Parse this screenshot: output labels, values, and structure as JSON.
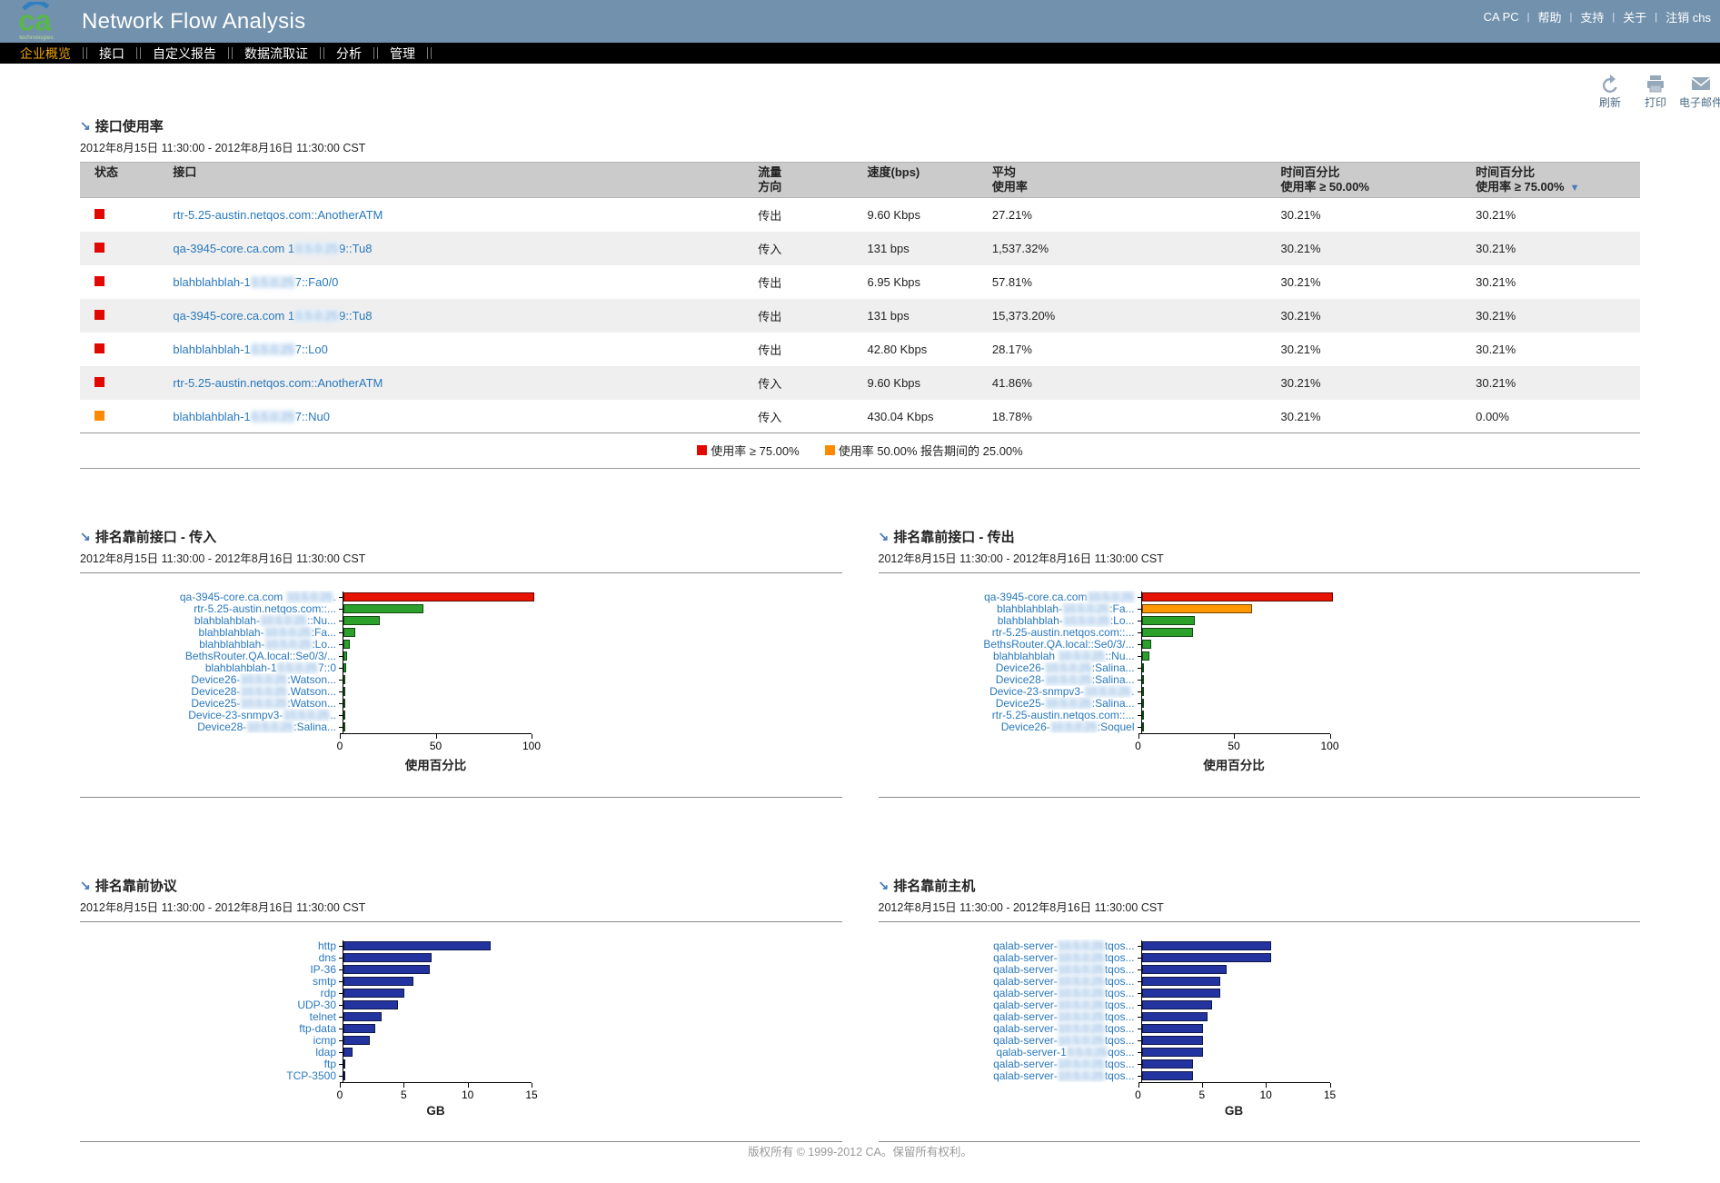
{
  "colors": {
    "header_bg": "#7191ad",
    "nav_bg": "#000000",
    "nav_active": "#f0a500",
    "link": "#2878be",
    "status_red": "#e00800",
    "status_orange": "#ff8a00"
  },
  "header": {
    "brand": "Network Flow Analysis",
    "logo_text": "ca",
    "logo_sub": "technologies",
    "links": [
      {
        "label": "CA PC"
      },
      {
        "label": "帮助"
      },
      {
        "label": "支持"
      },
      {
        "label": "关于"
      },
      {
        "label": "注销 chs"
      }
    ]
  },
  "nav": {
    "items": [
      {
        "label": "企业概览",
        "active": true
      },
      {
        "label": "接口",
        "active": false
      },
      {
        "label": "自定义报告",
        "active": false
      },
      {
        "label": "数据流取证",
        "active": false
      },
      {
        "label": "分析",
        "active": false
      },
      {
        "label": "管理",
        "active": false
      }
    ]
  },
  "toolbar": {
    "refresh": "刷新",
    "print": "打印",
    "email": "电子邮件"
  },
  "interface_table": {
    "title": "接口使用率",
    "date_range": "2012年8月15日 11:30:00 - 2012年8月16日 11:30:00 CST",
    "columns": {
      "status": "状态",
      "interface": "接口",
      "direction": [
        "流量",
        "方向"
      ],
      "speed": "速度(bps)",
      "avg": [
        "平均",
        "使用率"
      ],
      "p50": [
        "时间百分比",
        "使用率 ≥ 50.00%"
      ],
      "p75": [
        "时间百分比",
        "使用率 ≥ 75.00%"
      ]
    },
    "sort_column": "p75",
    "rows": [
      {
        "status": "red",
        "name": [
          {
            "t": "rtr-5.25-austin.netqos.com::AnotherATM"
          }
        ],
        "direction": "传出",
        "speed": "9.60 Kbps",
        "avg": "27.21%",
        "p50": "30.21%",
        "p75": "30.21%"
      },
      {
        "status": "red",
        "name": [
          {
            "t": "qa-3945-core.ca.com 1"
          },
          {
            "t": "0.5.0.25",
            "blur": true
          },
          {
            "t": "9::Tu8"
          }
        ],
        "direction": "传入",
        "speed": "131 bps",
        "avg": "1,537.32%",
        "p50": "30.21%",
        "p75": "30.21%"
      },
      {
        "status": "red",
        "name": [
          {
            "t": "blahblahblah-1"
          },
          {
            "t": "0.5.0.25",
            "blur": true
          },
          {
            "t": "7::Fa0/0"
          }
        ],
        "direction": "传出",
        "speed": "6.95 Kbps",
        "avg": "57.81%",
        "p50": "30.21%",
        "p75": "30.21%"
      },
      {
        "status": "red",
        "name": [
          {
            "t": "qa-3945-core.ca.com 1"
          },
          {
            "t": "0.5.0.25",
            "blur": true
          },
          {
            "t": "9::Tu8"
          }
        ],
        "direction": "传出",
        "speed": "131 bps",
        "avg": "15,373.20%",
        "p50": "30.21%",
        "p75": "30.21%"
      },
      {
        "status": "red",
        "name": [
          {
            "t": "blahblahblah-1"
          },
          {
            "t": "0.5.0.25",
            "blur": true
          },
          {
            "t": "7::Lo0"
          }
        ],
        "direction": "传出",
        "speed": "42.80 Kbps",
        "avg": "28.17%",
        "p50": "30.21%",
        "p75": "30.21%"
      },
      {
        "status": "red",
        "name": [
          {
            "t": "rtr-5.25-austin.netqos.com::AnotherATM"
          }
        ],
        "direction": "传入",
        "speed": "9.60 Kbps",
        "avg": "41.86%",
        "p50": "30.21%",
        "p75": "30.21%"
      },
      {
        "status": "orange",
        "name": [
          {
            "t": "blahblahblah-1"
          },
          {
            "t": "0.5.0.25",
            "blur": true
          },
          {
            "t": "7::Nu0"
          }
        ],
        "direction": "传入",
        "speed": "430.04 Kbps",
        "avg": "18.78%",
        "p50": "30.21%",
        "p75": "0.00%"
      }
    ],
    "legend": [
      {
        "color": "#e00800",
        "text": "使用率 ≥ 75.00%"
      },
      {
        "color": "#ff8a00",
        "text": "使用率 50.00% 报告期间的 25.00%"
      }
    ]
  },
  "chart_data": [
    {
      "type": "bar",
      "orientation": "horizontal",
      "title": "排名靠前接口 - 传入",
      "date_range": "2012年8月15日 11:30:00 - 2012年8月16日 11:30:00 CST",
      "xlabel": "使用百分比",
      "xlim": [
        0,
        100
      ],
      "xticks": [
        0,
        50,
        100
      ],
      "categories": [
        [
          {
            "t": "qa-3945-core.ca.com "
          },
          {
            "t": "10.5.0.25",
            "blur": true
          },
          {
            "t": "."
          }
        ],
        [
          {
            "t": "rtr-5.25-austin.netqos.com::..."
          }
        ],
        [
          {
            "t": "blahblahblah-"
          },
          {
            "t": "10.5.0.25",
            "blur": true
          },
          {
            "t": "::Nu..."
          }
        ],
        [
          {
            "t": "blahblahblah-"
          },
          {
            "t": "10.5.0.25",
            "blur": true
          },
          {
            "t": ":Fa..."
          }
        ],
        [
          {
            "t": "blahblahblah-"
          },
          {
            "t": "10.5.0.25",
            "blur": true
          },
          {
            "t": ":Lo..."
          }
        ],
        [
          {
            "t": "BethsRouter.QA.local::Se0/3/..."
          }
        ],
        [
          {
            "t": "blahblahblah-1"
          },
          {
            "t": "0.5.0.25",
            "blur": true
          },
          {
            "t": "7::0"
          }
        ],
        [
          {
            "t": "Device26-"
          },
          {
            "t": "10.5.0.25",
            "blur": true
          },
          {
            "t": ":Watson..."
          }
        ],
        [
          {
            "t": "Device28-"
          },
          {
            "t": "10.5.0.25",
            "blur": true
          },
          {
            "t": ".Watson..."
          }
        ],
        [
          {
            "t": "Device25-"
          },
          {
            "t": "10.5.0.25",
            "blur": true
          },
          {
            "t": ":Watson..."
          }
        ],
        [
          {
            "t": "Device-23-snmpv3-"
          },
          {
            "t": "10.5.0.25",
            "blur": true
          },
          {
            "t": ".."
          }
        ],
        [
          {
            "t": "Device28-"
          },
          {
            "t": "10.5.0.25",
            "blur": true
          },
          {
            "t": ":Salina..."
          }
        ]
      ],
      "values": [
        100,
        42,
        19,
        6,
        3.5,
        2,
        1.5,
        0.8,
        0.8,
        0.8,
        0.8,
        0.8
      ],
      "bar_colors": [
        "#e51300",
        "#2ba02b",
        "#2ba02b",
        "#2ba02b",
        "#2ba02b",
        "#2ba02b",
        "#2ba02b",
        "#2ba02b",
        "#2ba02b",
        "#2ba02b",
        "#2ba02b",
        "#2ba02b"
      ]
    },
    {
      "type": "bar",
      "orientation": "horizontal",
      "title": "排名靠前接口 - 传出",
      "date_range": "2012年8月15日 11:30:00 - 2012年8月16日 11:30:00 CST",
      "xlabel": "使用百分比",
      "xlim": [
        0,
        100
      ],
      "xticks": [
        0,
        50,
        100
      ],
      "categories": [
        [
          {
            "t": "qa-3945-core.ca.com"
          },
          {
            "t": "10.5.0.25",
            "blur": true
          }
        ],
        [
          {
            "t": "blahblahblah-"
          },
          {
            "t": "10.5.0.25",
            "blur": true
          },
          {
            "t": ":Fa..."
          }
        ],
        [
          {
            "t": "blahblahblah-"
          },
          {
            "t": "10.5.0.25",
            "blur": true
          },
          {
            "t": ":Lo..."
          }
        ],
        [
          {
            "t": "rtr-5.25-austin.netqos.com::..."
          }
        ],
        [
          {
            "t": "BethsRouter.QA.local::Se0/3/..."
          }
        ],
        [
          {
            "t": "blahblahblah "
          },
          {
            "t": "10.5.0.25",
            "blur": true
          },
          {
            "t": "::Nu..."
          }
        ],
        [
          {
            "t": "Device26-"
          },
          {
            "t": "10.5.0.25",
            "blur": true
          },
          {
            "t": ":Salina..."
          }
        ],
        [
          {
            "t": "Device28-"
          },
          {
            "t": "10.5.0.25",
            "blur": true
          },
          {
            "t": ":Salina..."
          }
        ],
        [
          {
            "t": "Device-23-snmpv3-"
          },
          {
            "t": "10.5.0.25",
            "blur": true
          },
          {
            "t": "."
          }
        ],
        [
          {
            "t": "Device25-"
          },
          {
            "t": "10.5.0.25",
            "blur": true
          },
          {
            "t": ":Salina..."
          }
        ],
        [
          {
            "t": "rtr-5.25-austin.netqos.com::..."
          }
        ],
        [
          {
            "t": "Device26-"
          },
          {
            "t": "10.5.0.25",
            "blur": true
          },
          {
            "t": ":Soquel"
          }
        ]
      ],
      "values": [
        100,
        58,
        28,
        27,
        5,
        4,
        0.8,
        0.8,
        0.8,
        0.8,
        0.8,
        0.8
      ],
      "bar_colors": [
        "#e51300",
        "#ff9800",
        "#2ba02b",
        "#2ba02b",
        "#2ba02b",
        "#2ba02b",
        "#2ba02b",
        "#2ba02b",
        "#2ba02b",
        "#2ba02b",
        "#2ba02b",
        "#2ba02b"
      ]
    },
    {
      "type": "bar",
      "orientation": "horizontal",
      "title": "排名靠前协议",
      "date_range": "2012年8月15日 11:30:00 - 2012年8月16日 11:30:00 CST",
      "xlabel": "GB",
      "xlim": [
        0,
        15
      ],
      "xticks": [
        0,
        5,
        10,
        15
      ],
      "categories": [
        [
          {
            "t": "http"
          }
        ],
        [
          {
            "t": "dns"
          }
        ],
        [
          {
            "t": "IP-36"
          }
        ],
        [
          {
            "t": "smtp"
          }
        ],
        [
          {
            "t": "rdp"
          }
        ],
        [
          {
            "t": "UDP-30"
          }
        ],
        [
          {
            "t": "telnet"
          }
        ],
        [
          {
            "t": "ftp-data"
          }
        ],
        [
          {
            "t": "icmp"
          }
        ],
        [
          {
            "t": "ldap"
          }
        ],
        [
          {
            "t": "ftp"
          }
        ],
        [
          {
            "t": "TCP-3500"
          }
        ]
      ],
      "values": [
        11.6,
        6.9,
        6.8,
        5.5,
        4.8,
        4.3,
        3.0,
        2.5,
        2.1,
        0.7,
        0.15,
        0.15
      ],
      "bar_color": "#2333a0"
    },
    {
      "type": "bar",
      "orientation": "horizontal",
      "title": "排名靠前主机",
      "date_range": "2012年8月15日 11:30:00 - 2012年8月16日 11:30:00 CST",
      "xlabel": "GB",
      "xlim": [
        0,
        15
      ],
      "xticks": [
        0,
        5,
        10,
        15
      ],
      "categories": [
        [
          {
            "t": "qalab-server-"
          },
          {
            "t": "10.5.0.25",
            "blur": true
          },
          {
            "t": "tqos..."
          }
        ],
        [
          {
            "t": "qalab-server-"
          },
          {
            "t": "10.5.0.25",
            "blur": true
          },
          {
            "t": "tqos..."
          }
        ],
        [
          {
            "t": "qalab-server-"
          },
          {
            "t": "10.5.0.25",
            "blur": true
          },
          {
            "t": "tqos..."
          }
        ],
        [
          {
            "t": "qalab-server-"
          },
          {
            "t": "10.5.0.25",
            "blur": true
          },
          {
            "t": "tqos..."
          }
        ],
        [
          {
            "t": "qalab-server-"
          },
          {
            "t": "10.5.0.25",
            "blur": true
          },
          {
            "t": "tqos..."
          }
        ],
        [
          {
            "t": "qalab-server-"
          },
          {
            "t": "10.5.0.25",
            "blur": true
          },
          {
            "t": "tqos..."
          }
        ],
        [
          {
            "t": "qalab-server-"
          },
          {
            "t": "10.5.0.25",
            "blur": true
          },
          {
            "t": "tqos..."
          }
        ],
        [
          {
            "t": "qalab-server-"
          },
          {
            "t": "10.5.0.25",
            "blur": true
          },
          {
            "t": "tqos..."
          }
        ],
        [
          {
            "t": "qalab-server-"
          },
          {
            "t": "10.5.0.25",
            "blur": true
          },
          {
            "t": "tqos..."
          }
        ],
        [
          {
            "t": "qalab-server-1"
          },
          {
            "t": "0.5.0.25",
            "blur": true
          },
          {
            "t": "qos..."
          }
        ],
        [
          {
            "t": "qalab-server-"
          },
          {
            "t": "10.5.0.25",
            "blur": true
          },
          {
            "t": "tqos..."
          }
        ],
        [
          {
            "t": "qalab-server-"
          },
          {
            "t": "10.5.0.25",
            "blur": true
          },
          {
            "t": "tqos..."
          }
        ]
      ],
      "values": [
        10.2,
        10.2,
        6.7,
        6.2,
        6.2,
        5.5,
        5.2,
        4.8,
        4.8,
        4.8,
        4.0,
        4.0
      ],
      "bar_color": "#2333a0"
    }
  ],
  "footer": {
    "copyright": "版权所有 © 1999-2012 CA。保留所有权利。"
  }
}
